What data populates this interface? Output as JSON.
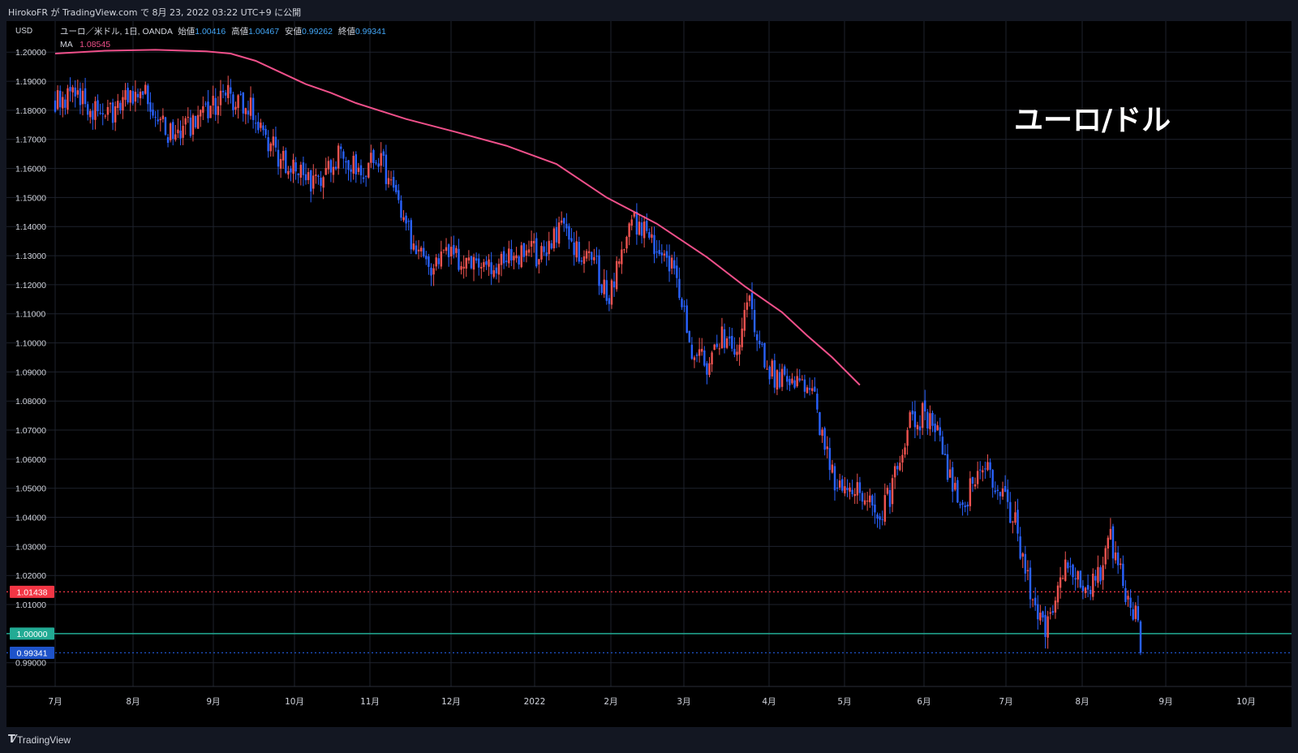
{
  "header": {
    "published": "HirokoFR が TradingView.com で 8月 23, 2022 03:22 UTC+9 に公開"
  },
  "legend": {
    "symbol": "ユーロ／米ドル, 1日, OANDA",
    "open_label": "始値",
    "open_value": "1.00416",
    "high_label": "高値",
    "high_value": "1.00467",
    "low_label": "安値",
    "low_value": "0.99262",
    "close_label": "終値",
    "close_value": "0.99341",
    "ma_label": "MA",
    "ma_value": "1.08545"
  },
  "overlay_title": "ユーロ/ドル",
  "footer": {
    "brand": "TradingView",
    "logo": "tradingview-logo-icon"
  },
  "colors": {
    "up": "#ef5350",
    "down": "#2962ff",
    "ma": "#f0508a",
    "grid": "#1e222d",
    "axis_text": "#d1d4dc",
    "background": "#000000",
    "price_badge_red": "#f23645",
    "parity_line": "#22ab94",
    "current_badge": "#1e53c9"
  },
  "chart_data": {
    "type": "candlestick",
    "timeframe": "1日",
    "currency_label": "USD",
    "y_range": [
      0.9835,
      1.209
    ],
    "y_ticks": [
      "1.20000",
      "1.19000",
      "1.18000",
      "1.17000",
      "1.16000",
      "1.15000",
      "1.14000",
      "1.13000",
      "1.12000",
      "1.11000",
      "1.10000",
      "1.09000",
      "1.08000",
      "1.07000",
      "1.06000",
      "1.05000",
      "1.04000",
      "1.03000",
      "1.02000",
      "1.01000",
      "0.99000"
    ],
    "x_ticks": [
      "7月",
      "8月",
      "9月",
      "10月",
      "11月",
      "12月",
      "2022",
      "2月",
      "3月",
      "4月",
      "5月",
      "6月",
      "7月",
      "8月",
      "9月",
      "10月"
    ],
    "horizontal_lines": [
      {
        "label": "1.01438",
        "value": 1.01438,
        "style": "dotted",
        "color": "#f23645"
      },
      {
        "label": "1.00000",
        "value": 1.0,
        "style": "solid",
        "color": "#22ab94"
      },
      {
        "label": "0.99341",
        "value": 0.99341,
        "style": "dotted",
        "color": "#1e53c9"
      }
    ],
    "ma_series": [
      [
        0,
        1.1995
      ],
      [
        20,
        1.2005
      ],
      [
        40,
        1.2008
      ],
      [
        60,
        1.2003
      ],
      [
        70,
        1.1995
      ],
      [
        80,
        1.197
      ],
      [
        90,
        1.193
      ],
      [
        100,
        1.189
      ],
      [
        110,
        1.186
      ],
      [
        120,
        1.1825
      ],
      [
        140,
        1.177
      ],
      [
        160,
        1.1725
      ],
      [
        180,
        1.1678
      ],
      [
        200,
        1.1615
      ],
      [
        220,
        1.15
      ],
      [
        240,
        1.141
      ],
      [
        260,
        1.1295
      ],
      [
        275,
        1.1195
      ],
      [
        290,
        1.1105
      ],
      [
        300,
        1.1025
      ],
      [
        310,
        1.095
      ],
      [
        321,
        1.0855
      ]
    ],
    "close_path": [
      [
        0,
        1.184
      ],
      [
        8,
        1.186
      ],
      [
        15,
        1.18
      ],
      [
        22,
        1.178
      ],
      [
        30,
        1.184
      ],
      [
        35,
        1.187
      ],
      [
        40,
        1.18
      ],
      [
        45,
        1.172
      ],
      [
        50,
        1.173
      ],
      [
        55,
        1.174
      ],
      [
        62,
        1.18
      ],
      [
        68,
        1.185
      ],
      [
        72,
        1.182
      ],
      [
        78,
        1.18
      ],
      [
        85,
        1.17
      ],
      [
        92,
        1.161
      ],
      [
        97,
        1.158
      ],
      [
        102,
        1.155
      ],
      [
        108,
        1.16
      ],
      [
        115,
        1.165
      ],
      [
        122,
        1.16
      ],
      [
        128,
        1.163
      ],
      [
        133,
        1.158
      ],
      [
        139,
        1.14
      ],
      [
        145,
        1.133
      ],
      [
        150,
        1.124
      ],
      [
        156,
        1.131
      ],
      [
        162,
        1.127
      ],
      [
        168,
        1.129
      ],
      [
        175,
        1.125
      ],
      [
        182,
        1.13
      ],
      [
        188,
        1.132
      ],
      [
        193,
        1.13
      ],
      [
        198,
        1.134
      ],
      [
        202,
        1.14
      ],
      [
        208,
        1.133
      ],
      [
        215,
        1.128
      ],
      [
        220,
        1.115
      ],
      [
        225,
        1.128
      ],
      [
        230,
        1.143
      ],
      [
        236,
        1.138
      ],
      [
        242,
        1.132
      ],
      [
        247,
        1.125
      ],
      [
        253,
        1.1
      ],
      [
        260,
        1.093
      ],
      [
        266,
        1.102
      ],
      [
        272,
        1.1
      ],
      [
        276,
        1.115
      ],
      [
        282,
        1.096
      ],
      [
        288,
        1.087
      ],
      [
        294,
        1.086
      ],
      [
        300,
        1.085
      ],
      [
        304,
        1.077
      ],
      [
        308,
        1.06
      ],
      [
        313,
        1.049
      ],
      [
        318,
        1.052
      ],
      [
        324,
        1.048
      ],
      [
        328,
        1.038
      ],
      [
        334,
        1.05
      ],
      [
        340,
        1.071
      ],
      [
        346,
        1.075
      ],
      [
        352,
        1.072
      ],
      [
        357,
        1.053
      ],
      [
        362,
        1.04
      ],
      [
        367,
        1.055
      ],
      [
        372,
        1.055
      ],
      [
        377,
        1.048
      ],
      [
        383,
        1.038
      ],
      [
        388,
        1.018
      ],
      [
        392,
        1.005
      ],
      [
        396,
        1.002
      ],
      [
        400,
        1.018
      ],
      [
        405,
        1.024
      ],
      [
        411,
        1.016
      ],
      [
        417,
        1.022
      ],
      [
        421,
        1.032
      ],
      [
        425,
        1.02
      ],
      [
        429,
        1.01
      ],
      [
        432,
        1.003
      ],
      [
        433,
        0.99341
      ]
    ],
    "seed": 9
  }
}
